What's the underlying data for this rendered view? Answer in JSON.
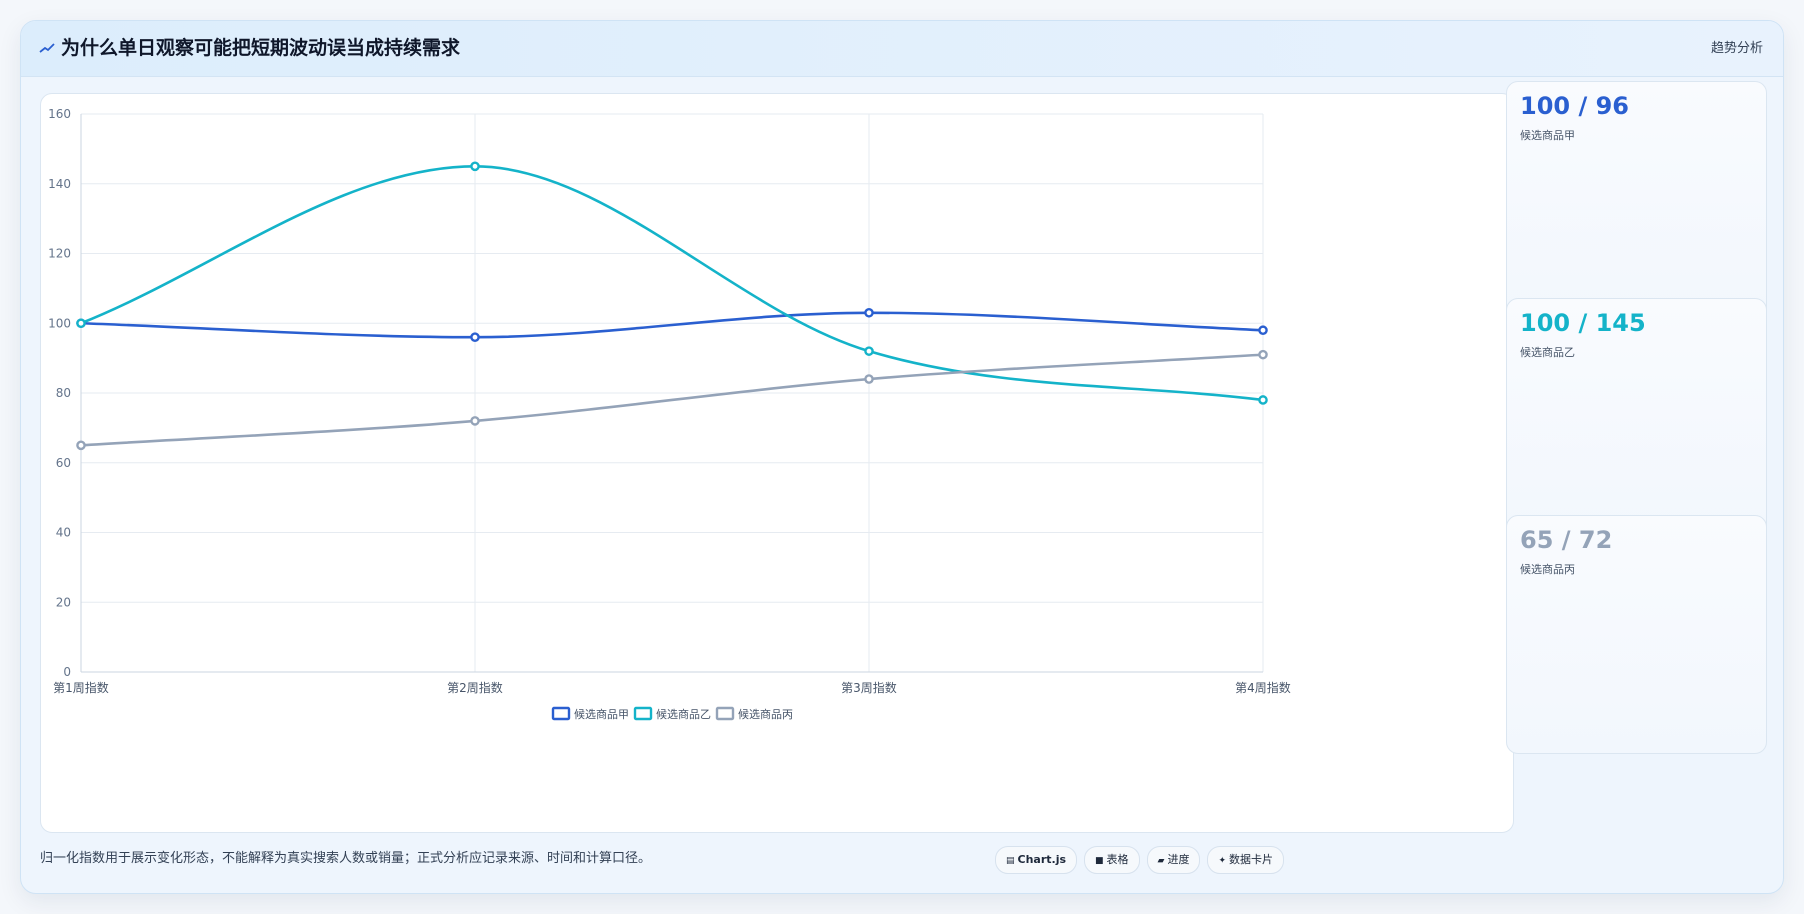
{
  "header": {
    "title": "为什么单日观察可能把短期波动误当成持续需求",
    "tag": "趋势分析",
    "icon": "trend-line-icon"
  },
  "colors": {
    "series_a": "#2a5fd0",
    "series_b": "#14b3c9",
    "series_c": "#94a3b8"
  },
  "stats": [
    {
      "value": "100 / 96",
      "label": "候选商品甲",
      "color": "#2a5fd0"
    },
    {
      "value": "100 / 145",
      "label": "候选商品乙",
      "color": "#14b3c9"
    },
    {
      "value": "65 / 72",
      "label": "候选商品丙",
      "color": "#94a3b8"
    }
  ],
  "footnote": "归一化指数用于展示变化形态，不能解释为真实搜索人数或销量；正式分析应记录来源、时间和计算口径。",
  "toolbar": [
    {
      "icon": "chart-icon",
      "glyph": "▤",
      "label": "Chart.js",
      "bold": true
    },
    {
      "icon": "table-icon",
      "glyph": "■",
      "label": "表格",
      "bold": false
    },
    {
      "icon": "progress-icon",
      "glyph": "▰",
      "label": "进度",
      "bold": false
    },
    {
      "icon": "card-icon",
      "glyph": "✦",
      "label": "数据卡片",
      "bold": false
    }
  ],
  "chart_data": {
    "type": "line",
    "categories": [
      "第1周指数",
      "第2周指数",
      "第3周指数",
      "第4周指数"
    ],
    "series": [
      {
        "name": "候选商品甲",
        "values": [
          100,
          96,
          103,
          98
        ],
        "color": "#2a5fd0"
      },
      {
        "name": "候选商品乙",
        "values": [
          100,
          145,
          92,
          78
        ],
        "color": "#14b3c9"
      },
      {
        "name": "候选商品丙",
        "values": [
          65,
          72,
          84,
          91
        ],
        "color": "#94a3b8"
      }
    ],
    "ylim": [
      0,
      160
    ],
    "yticks": [
      0,
      20,
      40,
      60,
      80,
      100,
      120,
      140,
      160
    ],
    "grid": true,
    "legend": "bottom-center",
    "smooth": true
  }
}
